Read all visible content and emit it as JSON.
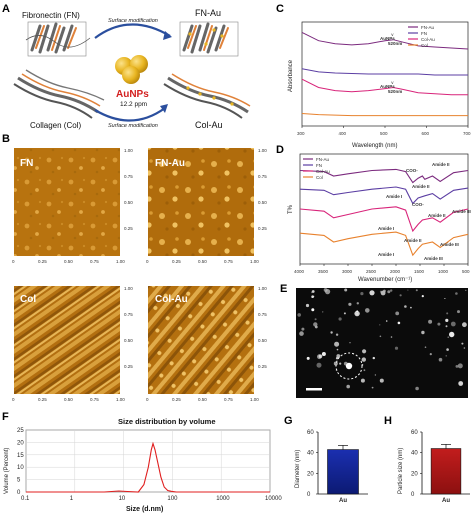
{
  "panels": {
    "A": "A",
    "B": "B",
    "C": "C",
    "D": "D",
    "E": "E",
    "F": "F",
    "G": "G",
    "H": "H"
  },
  "schematic": {
    "fibronectin": "Fibronectin (FN)",
    "fn_au": "FN-Au",
    "collagen": "Collagen (Col)",
    "col_au": "Col-Au",
    "aunps": "AuNPs",
    "ppm": "12.2 ppm",
    "surface_mod_top": "Surface modification",
    "surface_mod_bottom": "Surface modification"
  },
  "afm": {
    "labels": [
      "FN",
      "FN-Au",
      "Col",
      "Col-Au"
    ],
    "ticks_x": [
      "0",
      "0.25",
      "0.50",
      "0.75",
      "1.00"
    ],
    "ticks_y": [
      "1.00",
      "0.75",
      "0.50",
      "0.25"
    ]
  },
  "colors": {
    "fn_au": "#7b2a7e",
    "fn": "#5b3ea3",
    "col_au": "#d8247a",
    "col": "#e8822e",
    "au_bar": "#12248f",
    "particle_bar": "#a31515",
    "gold": "#e8b521",
    "afm": "#c07a12"
  },
  "chart_data": [
    {
      "panel": "C",
      "type": "line",
      "xlabel": "Wavelength (nm)",
      "ylabel": "Absorbance",
      "xlim": [
        300,
        700
      ],
      "xticks": [
        "300",
        "400",
        "500",
        "600",
        "700"
      ],
      "legend": [
        "FN-Au",
        "FN",
        "Col-Au",
        "Col"
      ],
      "legend_position": "top-right",
      "annotations": [
        "AuNPs",
        "520nm",
        "AuNPs",
        "520nm"
      ],
      "series": [
        {
          "name": "FN-Au",
          "x": [
            300,
            340,
            380,
            420,
            460,
            500,
            520,
            540,
            580,
            620,
            660,
            700
          ],
          "y": [
            0.9,
            0.82,
            0.79,
            0.78,
            0.79,
            0.82,
            0.83,
            0.81,
            0.77,
            0.76,
            0.75,
            0.74
          ]
        },
        {
          "name": "FN",
          "x": [
            300,
            340,
            380,
            420,
            460,
            500,
            540,
            580,
            620,
            660,
            700
          ],
          "y": [
            0.55,
            0.52,
            0.51,
            0.505,
            0.5,
            0.5,
            0.5,
            0.5,
            0.49,
            0.49,
            0.49
          ]
        },
        {
          "name": "Col-Au",
          "x": [
            300,
            340,
            380,
            420,
            460,
            500,
            520,
            540,
            580,
            620,
            660,
            700
          ],
          "y": [
            0.45,
            0.37,
            0.34,
            0.33,
            0.34,
            0.36,
            0.37,
            0.355,
            0.32,
            0.31,
            0.3,
            0.3
          ]
        },
        {
          "name": "Col",
          "x": [
            300,
            340,
            380,
            420,
            460,
            500,
            540,
            580,
            620,
            660,
            700
          ],
          "y": [
            0.12,
            0.11,
            0.105,
            0.1,
            0.1,
            0.1,
            0.1,
            0.1,
            0.1,
            0.1,
            0.1
          ]
        }
      ]
    },
    {
      "panel": "D",
      "type": "line",
      "xlabel": "Wavenumber (cm⁻¹)",
      "ylabel": "T%",
      "xlim": [
        4000,
        500
      ],
      "xticks": [
        "4000",
        "3500",
        "3000",
        "2500",
        "2000",
        "1500",
        "1000",
        "500"
      ],
      "legend": [
        "FN-Au",
        "FN",
        "Col-Au",
        "Col"
      ],
      "legend_position": "top-left",
      "annotations": [
        "COO-",
        "Amide II",
        "Amide I",
        "Amide II",
        "COO-",
        "Amide II",
        "Amide III",
        "Amide I",
        "Amide II",
        "Amide III",
        "Amide I",
        "Amide III"
      ],
      "series": [
        {
          "name": "FN-Au",
          "x": [
            4000,
            3500,
            3300,
            3000,
            2500,
            2000,
            1800,
            1650,
            1540,
            1450,
            1400,
            1240,
            1080,
            800,
            500
          ],
          "y": [
            0.85,
            0.84,
            0.8,
            0.82,
            0.85,
            0.86,
            0.84,
            0.74,
            0.78,
            0.8,
            0.77,
            0.8,
            0.75,
            0.83,
            0.85
          ]
        },
        {
          "name": "FN",
          "x": [
            4000,
            3500,
            3300,
            3000,
            2500,
            2000,
            1800,
            1650,
            1540,
            1400,
            1240,
            1080,
            800,
            500
          ],
          "y": [
            0.68,
            0.67,
            0.63,
            0.65,
            0.68,
            0.7,
            0.68,
            0.55,
            0.6,
            0.62,
            0.64,
            0.59,
            0.67,
            0.69
          ]
        },
        {
          "name": "Col-Au",
          "x": [
            4000,
            3500,
            3300,
            3000,
            2500,
            2000,
            1800,
            1650,
            1540,
            1450,
            1240,
            1080,
            800,
            500
          ],
          "y": [
            0.5,
            0.48,
            0.42,
            0.45,
            0.5,
            0.52,
            0.49,
            0.3,
            0.36,
            0.4,
            0.42,
            0.38,
            0.47,
            0.5
          ]
        },
        {
          "name": "Col",
          "x": [
            4000,
            3500,
            3300,
            3000,
            2500,
            2000,
            1800,
            1650,
            1540,
            1450,
            1240,
            1080,
            800,
            500
          ],
          "y": [
            0.28,
            0.26,
            0.2,
            0.23,
            0.27,
            0.29,
            0.26,
            0.08,
            0.14,
            0.18,
            0.2,
            0.15,
            0.24,
            0.27
          ]
        }
      ]
    },
    {
      "panel": "F",
      "type": "line",
      "title": "Size distribution by volume",
      "xlabel": "Size (d.nm)",
      "ylabel": "Volume (Percent)",
      "xscale": "log",
      "xlim": [
        0.1,
        10000
      ],
      "ylim": [
        0,
        25
      ],
      "xticks": [
        "0.1",
        "1",
        "10",
        "100",
        "1000",
        "10000"
      ],
      "yticks": [
        "0",
        "5",
        "10",
        "15",
        "20",
        "25"
      ],
      "grid": true,
      "series": [
        {
          "x": [
            0.1,
            4,
            8,
            12,
            20,
            26,
            32,
            37,
            40,
            44,
            50,
            58,
            68,
            80,
            95,
            120,
            1000,
            10000
          ],
          "y": [
            0,
            0,
            0.4,
            0.2,
            0,
            3,
            10,
            17,
            19.5,
            17,
            12,
            6,
            2,
            0.6,
            0.3,
            0,
            0,
            0
          ]
        }
      ]
    },
    {
      "panel": "G",
      "type": "bar",
      "categories": [
        "Au"
      ],
      "values": [
        43
      ],
      "errors": [
        4
      ],
      "ylabel": "Diameter (nm)",
      "ylim": [
        0,
        60
      ],
      "yticks": [
        "0",
        "20",
        "40",
        "60"
      ]
    },
    {
      "panel": "H",
      "type": "bar",
      "categories": [
        "Au"
      ],
      "values": [
        44
      ],
      "errors": [
        4
      ],
      "ylabel": "Particle size (nm)",
      "ylim": [
        0,
        60
      ],
      "yticks": [
        "0",
        "20",
        "40",
        "60"
      ]
    }
  ]
}
